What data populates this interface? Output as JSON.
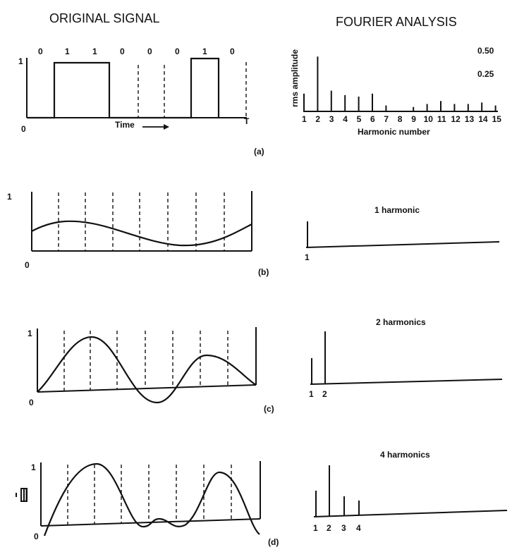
{
  "headers": {
    "left": "ORIGINAL SIGNAL",
    "right": "FOURIER ANALYSIS"
  },
  "panel_a": {
    "bits": [
      "0",
      "1",
      "1",
      "0",
      "0",
      "0",
      "1",
      "0"
    ],
    "y_one": "1",
    "y_zero": "0",
    "x_end": "T",
    "time_label": "Time",
    "tag": "(a)"
  },
  "spectrum_a": {
    "ylabel": "rms amplitude",
    "tick_high": "0.50",
    "tick_low": "0.25",
    "xlabel": "Harmonic number",
    "harmonics": [
      "1",
      "2",
      "3",
      "4",
      "5",
      "6",
      "7",
      "8",
      "9",
      "10",
      "11",
      "12",
      "13",
      "14",
      "15"
    ]
  },
  "panel_b": {
    "y_one": "1",
    "y_zero": "0",
    "tag": "(b)",
    "title": "1 harmonic",
    "harmonics": [
      "1"
    ]
  },
  "panel_c": {
    "y_one": "1",
    "y_zero": "0",
    "tag": "(c)",
    "title": "2 harmonics",
    "harmonics": [
      "1",
      "2"
    ]
  },
  "panel_d": {
    "y_one": "1",
    "y_zero": "0",
    "tag": "(d)",
    "title": "4 harmonics",
    "harmonics": [
      "1",
      "2",
      "3",
      "4"
    ]
  },
  "chart_data": {
    "type": "bar",
    "title": "",
    "xlabel": "Harmonic number",
    "ylabel": "rms amplitude",
    "categories": [
      1,
      2,
      3,
      4,
      5,
      6,
      7,
      8,
      9,
      10,
      11,
      12,
      13,
      14,
      15
    ],
    "values": [
      0.12,
      0.37,
      0.14,
      0.11,
      0.1,
      0.12,
      0.04,
      0.0,
      0.03,
      0.05,
      0.07,
      0.05,
      0.05,
      0.06,
      0.04
    ],
    "ylim": [
      0,
      0.5
    ]
  }
}
